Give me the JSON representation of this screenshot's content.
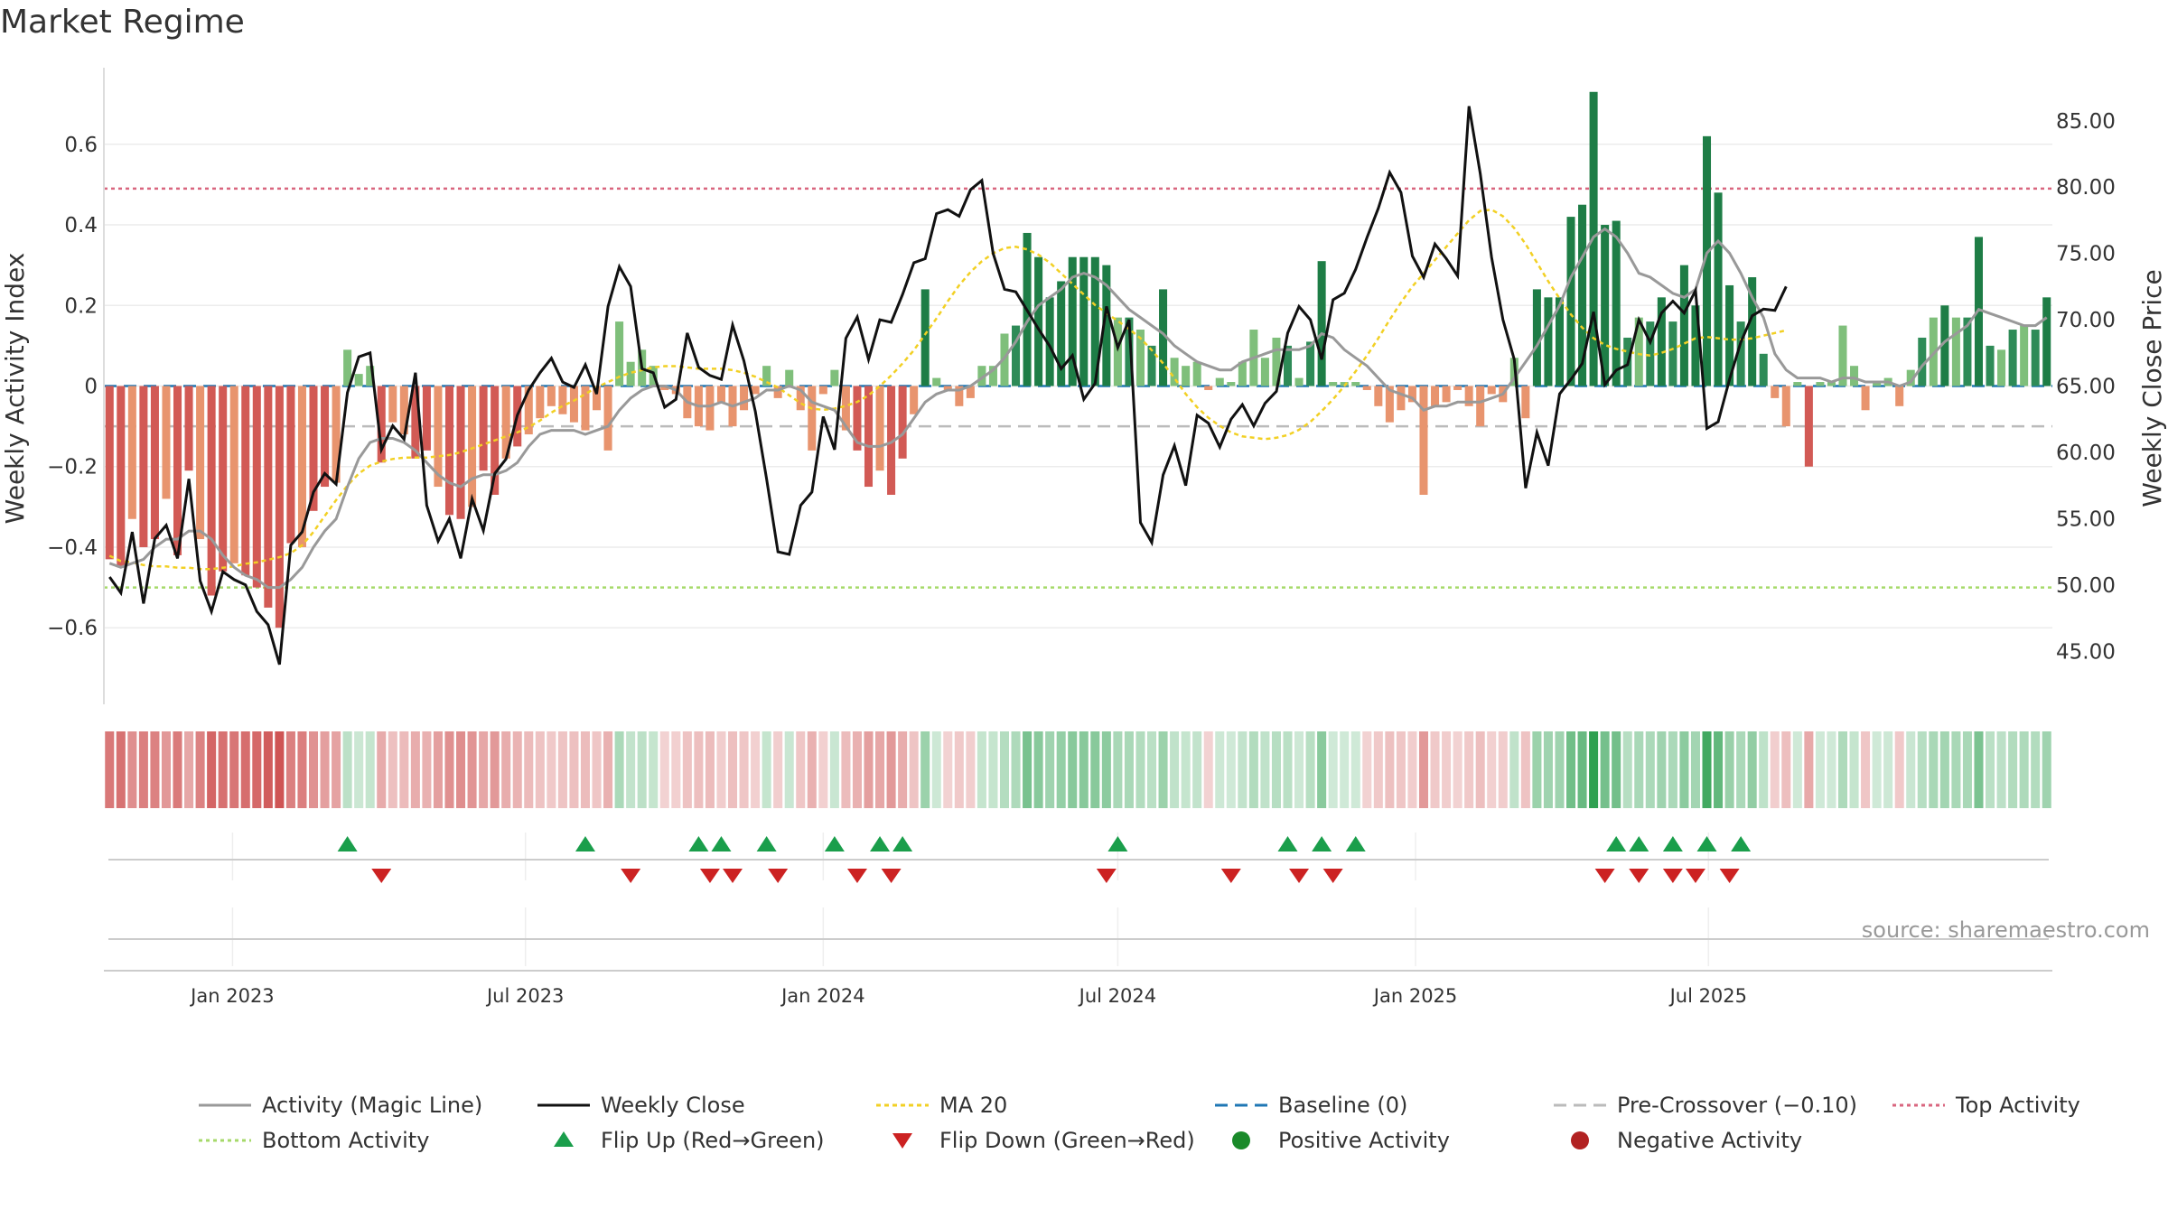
{
  "title": "Market Regime",
  "source_note": "source: sharemaestro.com",
  "colors": {
    "strong_red": "#c0392b",
    "red": "#d25a55",
    "light_red": "#e8946e",
    "strong_green": "#1e7d46",
    "green": "#2e8b57",
    "light_green": "#7fbf7b",
    "close_line": "#111111",
    "magic_line": "#999999",
    "ma20": "#f2d024",
    "baseline": "#1f77b4",
    "precross": "#bbbbbb",
    "top": "#d9667f",
    "bottom": "#a6d96a",
    "flip_up": "#1a9e4b",
    "flip_down": "#cc2222"
  },
  "legend": [
    {
      "label": "Activity (Magic Line)",
      "kind": "line",
      "color": "#999999",
      "dash": ""
    },
    {
      "label": "Weekly Close",
      "kind": "line",
      "color": "#111111",
      "dash": ""
    },
    {
      "label": "MA 20",
      "kind": "line",
      "color": "#f2d024",
      "dash": "5,4"
    },
    {
      "label": "Baseline (0)",
      "kind": "line",
      "color": "#1f77b4",
      "dash": "14,8"
    },
    {
      "label": "Pre-Crossover (−0.10)",
      "kind": "line",
      "color": "#bbbbbb",
      "dash": "14,8"
    },
    {
      "label": "Top Activity",
      "kind": "line",
      "color": "#d9667f",
      "dash": "4,4"
    },
    {
      "label": "Bottom Activity",
      "kind": "line",
      "color": "#a6d96a",
      "dash": "4,4"
    },
    {
      "label": "Flip Up (Red→Green)",
      "kind": "tri-up",
      "color": "#1a9e4b",
      "dash": ""
    },
    {
      "label": "Flip Down (Green→Red)",
      "kind": "tri-down",
      "color": "#cc2222",
      "dash": ""
    },
    {
      "label": "Positive Activity",
      "kind": "dot",
      "color": "#1a8a2a",
      "dash": ""
    },
    {
      "label": "Negative Activity",
      "kind": "dot",
      "color": "#b22222",
      "dash": ""
    }
  ],
  "chart_data": {
    "type": "bar",
    "x_start": "2022-10-17",
    "x_interval_days": 7,
    "x_ticks": [
      "Jan 2023",
      "Jul 2023",
      "Jan 2024",
      "Jul 2024",
      "Jan 2025",
      "Jul 2025"
    ],
    "y_left": {
      "label": "Weekly Activity Index",
      "ylim": [
        -0.79,
        0.79
      ],
      "ticks": [
        -0.6,
        -0.4,
        -0.2,
        0,
        0.2,
        0.4,
        0.6
      ],
      "tick_labels": [
        "−0.6",
        "−0.4",
        "−0.2",
        "0",
        "0.2",
        "0.4",
        "0.6"
      ]
    },
    "y_right": {
      "label": "Weekly Close Price",
      "ylim": [
        41.0,
        89.0
      ],
      "ticks": [
        45,
        50,
        55,
        60,
        65,
        70,
        75,
        80,
        85
      ],
      "tick_labels": [
        "45.00",
        "50.00",
        "55.00",
        "60.00",
        "65.00",
        "70.00",
        "75.00",
        "80.00",
        "85.00"
      ]
    },
    "reference_lines": {
      "baseline": 0,
      "pre_crossover": -0.1,
      "top_activity": 0.49,
      "bottom_activity": -0.5
    },
    "activity": [
      -0.43,
      -0.45,
      -0.33,
      -0.4,
      -0.38,
      -0.28,
      -0.42,
      -0.21,
      -0.38,
      -0.52,
      -0.46,
      -0.44,
      -0.47,
      -0.5,
      -0.55,
      -0.6,
      -0.39,
      -0.4,
      -0.31,
      -0.25,
      -0.24,
      0.09,
      0.03,
      0.05,
      -0.19,
      -0.09,
      -0.12,
      -0.18,
      -0.16,
      -0.25,
      -0.32,
      -0.33,
      -0.3,
      -0.21,
      -0.27,
      -0.18,
      -0.15,
      -0.12,
      -0.08,
      -0.05,
      -0.07,
      -0.09,
      -0.11,
      -0.06,
      -0.16,
      0.16,
      0.06,
      0.09,
      0.05,
      -0.01,
      -0.02,
      -0.08,
      -0.1,
      -0.11,
      -0.04,
      -0.1,
      -0.06,
      -0.02,
      0.05,
      -0.03,
      0.04,
      -0.06,
      -0.16,
      -0.02,
      0.04,
      -0.11,
      -0.16,
      -0.25,
      -0.21,
      -0.27,
      -0.18,
      -0.07,
      0.24,
      0.02,
      -0.01,
      -0.05,
      -0.03,
      0.05,
      0.05,
      0.13,
      0.15,
      0.38,
      0.32,
      0.22,
      0.26,
      0.32,
      0.32,
      0.32,
      0.3,
      0.17,
      0.17,
      0.14,
      0.1,
      0.24,
      0.07,
      0.05,
      0.06,
      -0.01,
      0.02,
      0.01,
      0.06,
      0.14,
      0.07,
      0.12,
      0.1,
      0.02,
      0.11,
      0.31,
      0.01,
      0.01,
      0.01,
      -0.01,
      -0.05,
      -0.09,
      -0.06,
      -0.04,
      -0.27,
      -0.05,
      -0.04,
      -0.01,
      -0.05,
      -0.1,
      -0.02,
      -0.04,
      0.07,
      -0.08,
      0.24,
      0.22,
      0.22,
      0.42,
      0.45,
      0.73,
      0.4,
      0.41,
      0.12,
      0.17,
      0.16,
      0.22,
      0.16,
      0.3,
      0.2,
      0.62,
      0.48,
      0.25,
      0.16,
      0.27,
      0.08,
      -0.03,
      -0.1,
      0.01,
      -0.2,
      0.01,
      0.01,
      0.15,
      0.05,
      -0.06,
      0.01,
      0.02,
      -0.05,
      0.04,
      0.12,
      0.17,
      0.2,
      0.17,
      0.17,
      0.37,
      0.1,
      0.09,
      0.14,
      0.15,
      0.14,
      0.22
    ],
    "magic_line": [
      -0.44,
      -0.45,
      -0.44,
      -0.43,
      -0.4,
      -0.38,
      -0.38,
      -0.36,
      -0.36,
      -0.38,
      -0.42,
      -0.45,
      -0.47,
      -0.48,
      -0.5,
      -0.5,
      -0.48,
      -0.45,
      -0.4,
      -0.36,
      -0.33,
      -0.25,
      -0.18,
      -0.14,
      -0.13,
      -0.13,
      -0.14,
      -0.16,
      -0.19,
      -0.22,
      -0.24,
      -0.25,
      -0.23,
      -0.22,
      -0.22,
      -0.21,
      -0.19,
      -0.15,
      -0.12,
      -0.11,
      -0.11,
      -0.11,
      -0.12,
      -0.11,
      -0.1,
      -0.06,
      -0.03,
      -0.01,
      0.0,
      0.0,
      -0.01,
      -0.04,
      -0.05,
      -0.05,
      -0.04,
      -0.05,
      -0.04,
      -0.03,
      -0.01,
      -0.01,
      0.0,
      -0.01,
      -0.04,
      -0.05,
      -0.06,
      -0.1,
      -0.14,
      -0.15,
      -0.15,
      -0.14,
      -0.12,
      -0.08,
      -0.04,
      -0.02,
      -0.01,
      -0.01,
      0.0,
      0.02,
      0.04,
      0.07,
      0.11,
      0.16,
      0.2,
      0.22,
      0.24,
      0.27,
      0.28,
      0.27,
      0.25,
      0.22,
      0.19,
      0.17,
      0.15,
      0.13,
      0.1,
      0.08,
      0.06,
      0.05,
      0.04,
      0.04,
      0.06,
      0.07,
      0.08,
      0.09,
      0.09,
      0.09,
      0.1,
      0.13,
      0.12,
      0.09,
      0.07,
      0.05,
      0.02,
      -0.01,
      -0.02,
      -0.03,
      -0.06,
      -0.05,
      -0.05,
      -0.04,
      -0.04,
      -0.04,
      -0.03,
      -0.02,
      0.02,
      0.06,
      0.1,
      0.15,
      0.2,
      0.27,
      0.32,
      0.37,
      0.39,
      0.37,
      0.33,
      0.28,
      0.27,
      0.25,
      0.23,
      0.22,
      0.24,
      0.33,
      0.36,
      0.33,
      0.28,
      0.22,
      0.17,
      0.08,
      0.04,
      0.02,
      0.02,
      0.02,
      0.01,
      0.02,
      0.02,
      0.01,
      0.01,
      0.01,
      0.0,
      0.01,
      0.05,
      0.08,
      0.11,
      0.13,
      0.15,
      0.19,
      0.18,
      0.17,
      0.16,
      0.15,
      0.15,
      0.17
    ],
    "weekly_close": [
      50.6,
      49.4,
      54.0,
      48.6,
      53.5,
      54.5,
      52.0,
      58.0,
      50.3,
      48.0,
      51.0,
      50.4,
      50.0,
      48.0,
      47.0,
      44.0,
      53.0,
      54.0,
      57.0,
      58.4,
      57.6,
      64.5,
      67.2,
      67.5,
      60.2,
      62.0,
      61.0,
      66.0,
      56.0,
      53.3,
      55.0,
      52.0,
      56.5,
      54.1,
      58.4,
      59.5,
      62.8,
      64.7,
      66.0,
      67.1,
      65.3,
      64.9,
      66.6,
      64.4,
      71.0,
      74.0,
      72.5,
      66.3,
      66.0,
      63.4,
      64.0,
      69.0,
      66.4,
      65.8,
      65.5,
      69.6,
      66.9,
      63.1,
      58.0,
      52.5,
      52.3,
      56.0,
      57.0,
      62.7,
      60.2,
      68.6,
      70.2,
      67.0,
      70.0,
      69.8,
      71.9,
      74.3,
      74.6,
      78.0,
      78.3,
      77.8,
      79.8,
      80.5,
      75.0,
      72.3,
      72.1,
      70.7,
      69.3,
      68.0,
      66.3,
      67.3,
      64.0,
      65.2,
      71.0,
      67.9,
      70.0,
      54.7,
      53.2,
      58.3,
      60.5,
      57.5,
      62.8,
      62.2,
      60.4,
      62.5,
      63.6,
      62.0,
      63.7,
      64.6,
      69.0,
      71.0,
      70.0,
      67.0,
      71.5,
      72.0,
      73.8,
      76.2,
      78.4,
      81.1,
      79.6,
      74.8,
      73.2,
      75.7,
      74.6,
      73.3,
      86.1,
      81.0,
      74.7,
      70.0,
      67.0,
      57.3,
      61.5,
      59.0,
      64.4,
      65.5,
      66.7,
      70.6,
      65.1,
      66.2,
      66.6,
      70.0,
      68.3,
      70.5,
      71.4,
      70.5,
      72.2,
      61.8,
      62.3,
      65.5,
      68.3,
      70.3,
      70.8,
      70.7,
      72.5
    ],
    "ma20": [
      52.2,
      51.8,
      51.7,
      51.5,
      51.4,
      51.4,
      51.3,
      51.3,
      51.2,
      51.2,
      51.3,
      51.4,
      51.6,
      51.7,
      51.9,
      52.1,
      52.4,
      53.0,
      54.0,
      55.2,
      56.4,
      57.5,
      58.4,
      59.0,
      59.3,
      59.5,
      59.6,
      59.6,
      59.6,
      59.7,
      59.8,
      60.0,
      60.3,
      60.6,
      60.9,
      61.2,
      61.5,
      61.9,
      62.4,
      63.0,
      63.5,
      63.9,
      64.4,
      64.9,
      65.3,
      65.7,
      66.0,
      66.2,
      66.4,
      66.5,
      66.5,
      66.4,
      66.3,
      66.3,
      66.3,
      66.2,
      66.0,
      65.7,
      65.3,
      64.9,
      64.3,
      63.7,
      63.3,
      63.2,
      63.3,
      63.5,
      63.8,
      64.3,
      65.0,
      65.8,
      66.7,
      67.7,
      68.9,
      70.1,
      71.4,
      72.6,
      73.6,
      74.4,
      75.0,
      75.4,
      75.5,
      75.3,
      74.9,
      74.3,
      73.5,
      72.7,
      71.9,
      71.1,
      70.5,
      69.9,
      69.3,
      68.6,
      67.7,
      66.7,
      65.6,
      64.4,
      63.4,
      62.6,
      62.0,
      61.5,
      61.2,
      61.1,
      61.0,
      61.1,
      61.3,
      61.7,
      62.3,
      63.1,
      64.0,
      65.0,
      66.1,
      67.3,
      68.6,
      70.0,
      71.3,
      72.5,
      73.5,
      74.5,
      75.5,
      76.5,
      77.5,
      78.2,
      78.3,
      77.8,
      76.9,
      75.7,
      74.3,
      72.9,
      71.6,
      70.4,
      69.4,
      68.6,
      68.1,
      67.8,
      67.6,
      67.4,
      67.3,
      67.5,
      67.8,
      68.2,
      68.6,
      68.7,
      68.6,
      68.5,
      68.5,
      68.6,
      68.8,
      69.0,
      69.2
    ],
    "flip_up_weeks": [
      21,
      42,
      52,
      54,
      58,
      64,
      68,
      70,
      89,
      104,
      107,
      110,
      133,
      135,
      138,
      141,
      144
    ],
    "flip_down_weeks": [
      24,
      46,
      53,
      55,
      59,
      66,
      69,
      88,
      99,
      105,
      108,
      132,
      135,
      138,
      140,
      143
    ]
  }
}
